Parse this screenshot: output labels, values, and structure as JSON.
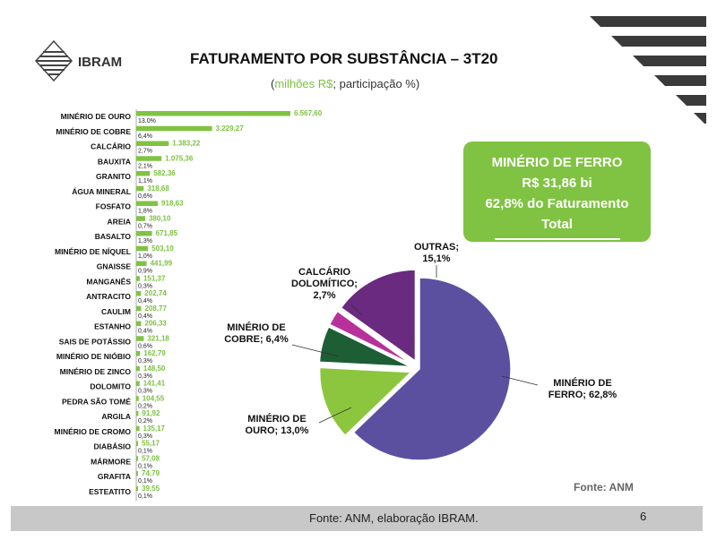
{
  "brand": {
    "name": "IBRAM"
  },
  "header": {
    "title": "FATURAMENTO POR SUBSTÂNCIA – 3T20",
    "subtitle_open": "(",
    "subtitle_unit": "milhões R$",
    "subtitle_rest": "; participação %)"
  },
  "callout": {
    "line1": "MINÉRIO DE FERRO",
    "line2": "R$ 31,86 bi",
    "line3": "62,8% do Faturamento",
    "line4": "Total"
  },
  "source_right": "Fonte: ANM",
  "footer": {
    "text": "Fonte: ANM, elaboração IBRAM.",
    "page": "6"
  },
  "colors": {
    "green": "#80c342",
    "ferro": "#5b50a0",
    "ouro": "#8cc63e",
    "cobre": "#1e5e34",
    "calcario": "#b8319a",
    "outras": "#6a2a80"
  },
  "chart_data": [
    {
      "type": "bar",
      "orientation": "horizontal",
      "categories": [
        "MINÉRIO DE OURO",
        "MINÉRIO DE COBRE",
        "CALCÁRIO",
        "BAUXITA",
        "GRANITO",
        "ÁGUA MINERAL",
        "FOSFATO",
        "AREIA",
        "BASALTO",
        "MINÉRIO DE NÍQUEL",
        "GNAISSE",
        "MANGANÊS",
        "ANTRACITO",
        "CAULIM",
        "ESTANHO",
        "SAIS DE POTÁSSIO",
        "MINÉRIO DE NIÓBIO",
        "MINÉRIO DE ZINCO",
        "DOLOMITO",
        "PEDRA SÃO TOMÉ",
        "ARGILA",
        "MINÉRIO DE CROMO",
        "DIABÁSIO",
        "MÁRMORE",
        "GRAFITA",
        "ESTEATITO"
      ],
      "values": [
        6567.6,
        3229.27,
        1383.22,
        1075.36,
        582.36,
        318.68,
        918.63,
        380.1,
        671.85,
        503.1,
        441.99,
        151.37,
        202.74,
        208.77,
        206.33,
        321.18,
        162.79,
        148.5,
        141.41,
        104.55,
        91.92,
        135.17,
        55.17,
        57.08,
        74.79,
        39.55
      ],
      "value_labels": [
        "6.567,60",
        "3.229,27",
        "1.383,22",
        "1.075,36",
        "582,36",
        "318,68",
        "918,63",
        "380,10",
        "671,85",
        "503,10",
        "441,99",
        "151,37",
        "202,74",
        "208,77",
        "206,33",
        "321,18",
        "162,79",
        "148,50",
        "141,41",
        "104,55",
        "91,92",
        "135,17",
        "55,17",
        "57,08",
        "74,79",
        "39,55"
      ],
      "share_labels": [
        "13,0%",
        "6,4%",
        "2,7%",
        "2,1%",
        "1,1%",
        "0,6%",
        "1,8%",
        "0,7%",
        "1,3%",
        "1,0%",
        "0,9%",
        "0,3%",
        "0,4%",
        "0,4%",
        "0,4%",
        "0,6%",
        "0,3%",
        "0,3%",
        "0,3%",
        "0,2%",
        "0,2%",
        "0,3%",
        "0,1%",
        "0,1%",
        "0,1%",
        "0,1%"
      ]
    },
    {
      "type": "pie",
      "slices": [
        {
          "label": "MINÉRIO DE FERRO; 62,8%",
          "value": 62.8,
          "color": "#5b50a0"
        },
        {
          "label": "MINÉRIO DE OURO; 13,0%",
          "value": 13.0,
          "color": "#8cc63e"
        },
        {
          "label": "MINÉRIO DE COBRE; 6,4%",
          "value": 6.4,
          "color": "#1e5e34"
        },
        {
          "label": "CALCÁRIO DOLOMÍTICO; 2,7%",
          "value": 2.7,
          "color": "#b8319a"
        },
        {
          "label": "OUTRAS; 15,1%",
          "value": 15.1,
          "color": "#6a2a80"
        }
      ]
    }
  ]
}
